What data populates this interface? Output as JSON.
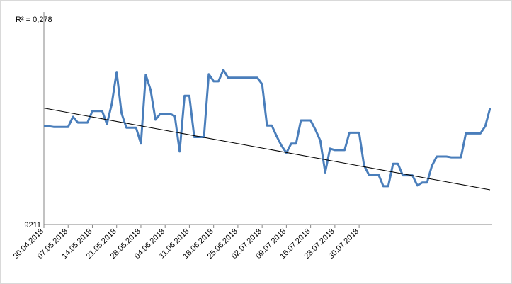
{
  "chart_data": {
    "type": "line",
    "title": "",
    "annotation": "R² = 0,278",
    "y_axis_min_label": "9211",
    "series_color": "#4a7ebb",
    "trendline_color": "#000000",
    "grid": false,
    "x_tick_labels": [
      "30.04.2018",
      "07.05.2018",
      "14.05.2018",
      "21.05.2018",
      "28.05.2018",
      "04.06.2018",
      "11.06.2018",
      "18.06.2018",
      "25.06.2018",
      "02.07.2018",
      "09.07.2018",
      "16.07.2018",
      "23.07.2018",
      "30.07.2018"
    ],
    "ylim": [
      9211,
      9500
    ],
    "trendline": {
      "y_start": 9372,
      "y_end": 9259
    },
    "values": [
      9347,
      9347,
      9346,
      9346,
      9346,
      9346,
      9360,
      9352,
      9352,
      9352,
      9368,
      9368,
      9368,
      9350,
      9378,
      9422,
      9365,
      9345,
      9345,
      9345,
      9323,
      9418,
      9397,
      9356,
      9364,
      9364,
      9364,
      9361,
      9312,
      9389,
      9389,
      9332,
      9332,
      9332,
      9419,
      9409,
      9409,
      9425,
      9414,
      9414,
      9414,
      9414,
      9414,
      9414,
      9414,
      9405,
      9348,
      9348,
      9333,
      9320,
      9310,
      9323,
      9323,
      9355,
      9355,
      9355,
      9342,
      9327,
      9283,
      9316,
      9314,
      9314,
      9314,
      9338,
      9338,
      9338,
      9293,
      9280,
      9280,
      9280,
      9264,
      9264,
      9295,
      9295,
      9279,
      9279,
      9279,
      9265,
      9269,
      9269,
      9292,
      9305,
      9305,
      9305,
      9304,
      9304,
      9304,
      9337,
      9337,
      9337,
      9337,
      9347,
      9372
    ]
  }
}
